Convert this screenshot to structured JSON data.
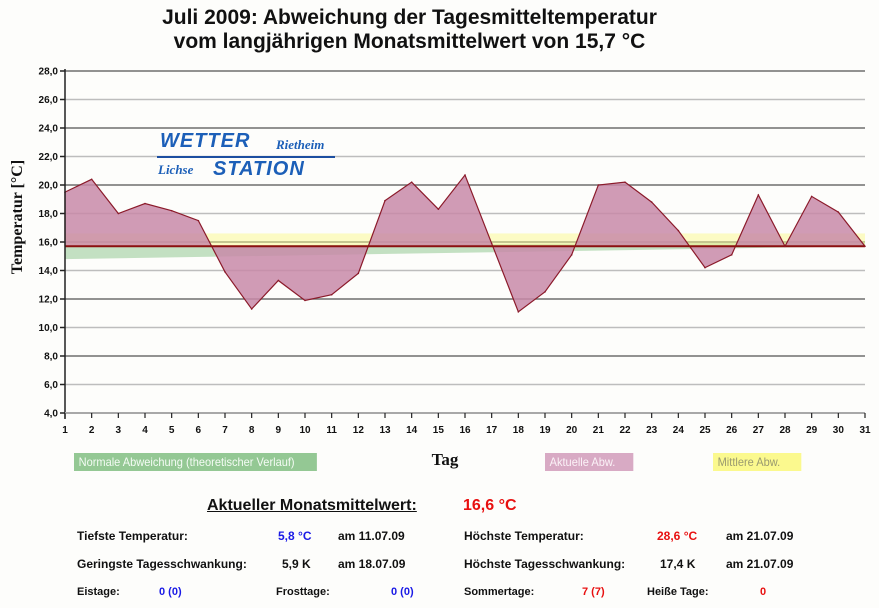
{
  "title": {
    "line1": "Juli 2009: Abweichung der Tagesmitteltemperatur",
    "line2": "vom langjährigen Monatsmittelwert von 15,7 °C"
  },
  "logo": {
    "word1": "WETTER",
    "word2": "STATION",
    "place1": "Rietheim",
    "place2": "Lichse"
  },
  "chart_data": {
    "type": "area",
    "title": "Juli 2009: Abweichung der Tagesmitteltemperatur vom langjährigen Monatsmittelwert von 15,7 °C",
    "xlabel": "Tag",
    "ylabel": "Temperatur [°C]",
    "ylim": [
      4.0,
      28.0
    ],
    "xlim": [
      1,
      31
    ],
    "grid": true,
    "baseline": 15.7,
    "x": [
      1,
      2,
      3,
      4,
      5,
      6,
      7,
      8,
      9,
      10,
      11,
      12,
      13,
      14,
      15,
      16,
      17,
      18,
      19,
      20,
      21,
      22,
      23,
      24,
      25,
      26,
      27,
      28,
      29,
      30,
      31
    ],
    "x_tick_labels": [
      "1",
      "2",
      "3",
      "4",
      "5",
      "6",
      "7",
      "8",
      "9",
      "10",
      "11",
      "12",
      "13",
      "14",
      "15",
      "16",
      "17",
      "18",
      "19",
      "20",
      "21",
      "22",
      "23",
      "24",
      "25",
      "26",
      "27",
      "28",
      "29",
      "30",
      "31"
    ],
    "y_tick_labels": [
      "4,0",
      "6,0",
      "8,0",
      "10,0",
      "12,0",
      "14,0",
      "16,0",
      "18,0",
      "20,0",
      "22,0",
      "24,0",
      "26,0",
      "28,0"
    ],
    "y_ticks": [
      4,
      6,
      8,
      10,
      12,
      14,
      16,
      18,
      20,
      22,
      24,
      26,
      28
    ],
    "series": [
      {
        "name": "Aktuelle Abw.",
        "color": "#c88aa8",
        "line_color": "#8b1a2a",
        "values": [
          19.5,
          20.4,
          18.0,
          18.7,
          18.2,
          17.5,
          13.9,
          11.3,
          13.3,
          11.9,
          12.3,
          13.8,
          18.9,
          20.2,
          18.3,
          20.7,
          15.9,
          11.1,
          12.5,
          15.1,
          20.0,
          20.2,
          18.8,
          16.8,
          14.2,
          15.1,
          19.3,
          15.7,
          19.2,
          18.1,
          15.7
        ]
      },
      {
        "name": "Normale Abweichung (theoretischer Verlauf)",
        "color": "#94c894",
        "range_low": [
          14.8,
          15.7
        ],
        "range_high": [
          15.7,
          16.0
        ]
      },
      {
        "name": "Mittlere Abw.",
        "color": "#fbf98e",
        "range": [
          15.7,
          16.6
        ]
      }
    ],
    "legend": [
      "Normale Abweichung (theoretischer Verlauf)",
      "Aktuelle Abw.",
      "Mittlere Abw."
    ],
    "legend_placement": "bottom"
  },
  "stats": {
    "monthly_mean_label": "Aktueller Monatsmittelwert:",
    "monthly_mean_value": "16,6 °C",
    "min_temp_label": "Tiefste Temperatur:",
    "min_temp_value": "5,8 °C",
    "min_temp_date": "am 11.07.09",
    "max_temp_label": "Höchste Temperatur:",
    "max_temp_value": "28,6 °C",
    "max_temp_date": "am 21.07.09",
    "min_range_label": "Geringste Tagesschwankung:",
    "min_range_value": "5,9 K",
    "min_range_date": "am 18.07.09",
    "max_range_label": "Höchste Tagesschwankung:",
    "max_range_value": "17,4 K",
    "max_range_date": "am 21.07.09",
    "eistage_label": "Eistage:",
    "eistage_value": "0 (0)",
    "frosttage_label": "Frosttage:",
    "frosttage_value": "0 (0)",
    "sommertage_label": "Sommertage:",
    "sommertage_value": "7 (7)",
    "heisse_label": "Heiße Tage:",
    "heisse_value": "0"
  }
}
